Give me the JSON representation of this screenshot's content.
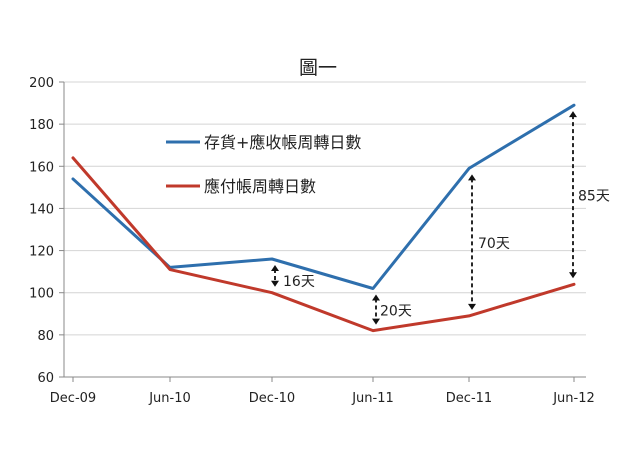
{
  "chart_data": {
    "type": "line",
    "title": "圖一",
    "categories": [
      "Dec-09",
      "Jun-10",
      "Dec-10",
      "Jun-11",
      "Dec-11",
      "Jun-12"
    ],
    "ylim": [
      60,
      200
    ],
    "yticks": [
      60,
      80,
      100,
      120,
      140,
      160,
      180,
      200
    ],
    "grid": true,
    "legend_position": "upper-middle",
    "series": [
      {
        "name": "存貨+應收帳周轉日數",
        "color": "#2e6fad",
        "values": [
          154,
          112,
          116,
          102,
          159,
          189
        ]
      },
      {
        "name": "應付帳周轉日數",
        "color": "#c0392b",
        "values": [
          164,
          111,
          100,
          82,
          89,
          104
        ]
      }
    ],
    "annotations": [
      {
        "category": "Dec-10",
        "from": 116,
        "to": 100,
        "label": "16天"
      },
      {
        "category": "Jun-11",
        "from": 102,
        "to": 82,
        "label": "20天"
      },
      {
        "category": "Dec-11",
        "from": 159,
        "to": 89,
        "label": "70天"
      },
      {
        "category": "Jun-12",
        "from": 189,
        "to": 104,
        "label": "85天"
      }
    ]
  }
}
